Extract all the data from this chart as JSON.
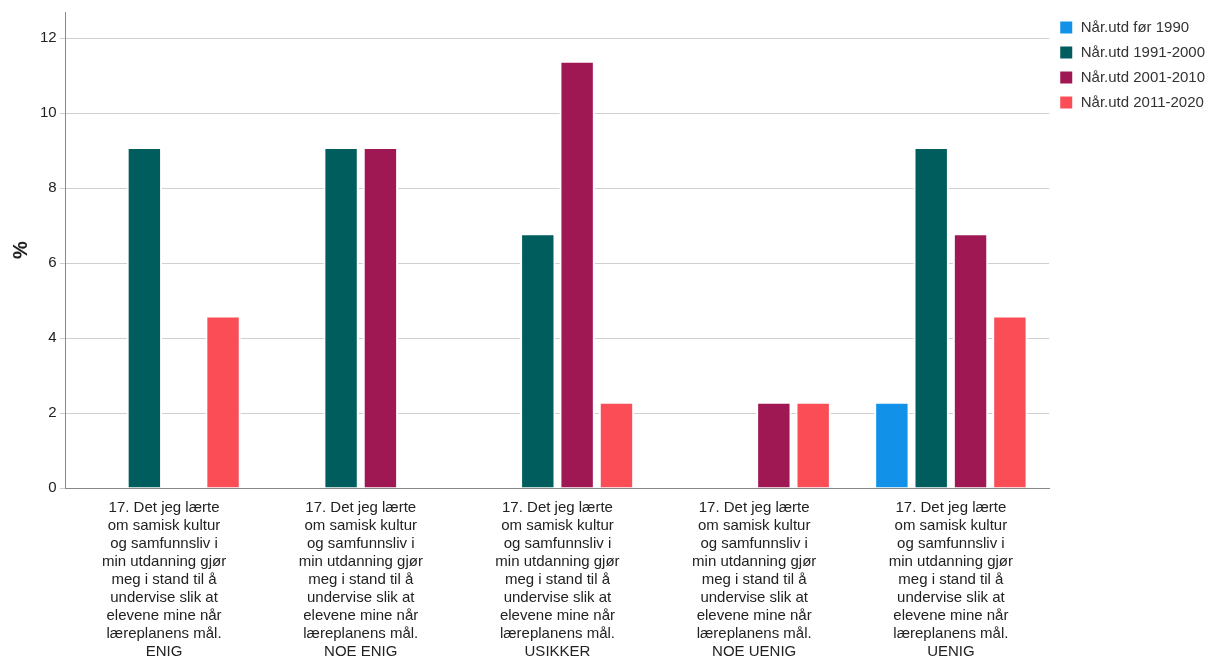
{
  "chart_data": {
    "type": "bar",
    "ylabel": "%",
    "categories": [
      "17. Det jeg lærte om samisk kultur og samfunnsliv i min utdanning gjør meg i stand til å undervise slik at elevene mine når læreplanens mål. ENIG",
      "17. Det jeg lærte om samisk kultur og samfunnsliv i min utdanning gjør meg i stand til å undervise slik at elevene mine når læreplanens mål. NOE ENIG",
      "17. Det jeg lærte om samisk kultur og samfunnsliv i min utdanning gjør meg i stand til å undervise slik at elevene mine når læreplanens mål. USIKKER",
      "17. Det jeg lærte om samisk kultur og samfunnsliv i min utdanning gjør meg i stand til å undervise slik at elevene mine når læreplanens mål. NOE UENIG",
      "17. Det jeg lærte om samisk kultur og samfunnsliv i min utdanning gjør meg i stand til å undervise slik at elevene mine når læreplanens mål. UENIG"
    ],
    "series": [
      {
        "name": "Når.utd før 1990",
        "color": "#1192e8",
        "values": [
          0,
          0,
          0,
          0,
          2.3
        ]
      },
      {
        "name": "Når.utd 1991-2000",
        "color": "#005d5d",
        "values": [
          9.1,
          9.1,
          6.8,
          0,
          9.1
        ]
      },
      {
        "name": "Når.utd 2001-2010",
        "color": "#9f1853",
        "values": [
          0,
          9.1,
          11.4,
          2.3,
          6.8
        ]
      },
      {
        "name": "Når.utd 2011-2020",
        "color": "#fa4d56",
        "values": [
          4.6,
          0,
          2.3,
          2.3,
          4.6
        ]
      }
    ],
    "ylim": [
      0,
      12.7
    ],
    "yticks": [
      0,
      2,
      4,
      6,
      8,
      10,
      12
    ],
    "grid": "y",
    "legend": "top right"
  }
}
